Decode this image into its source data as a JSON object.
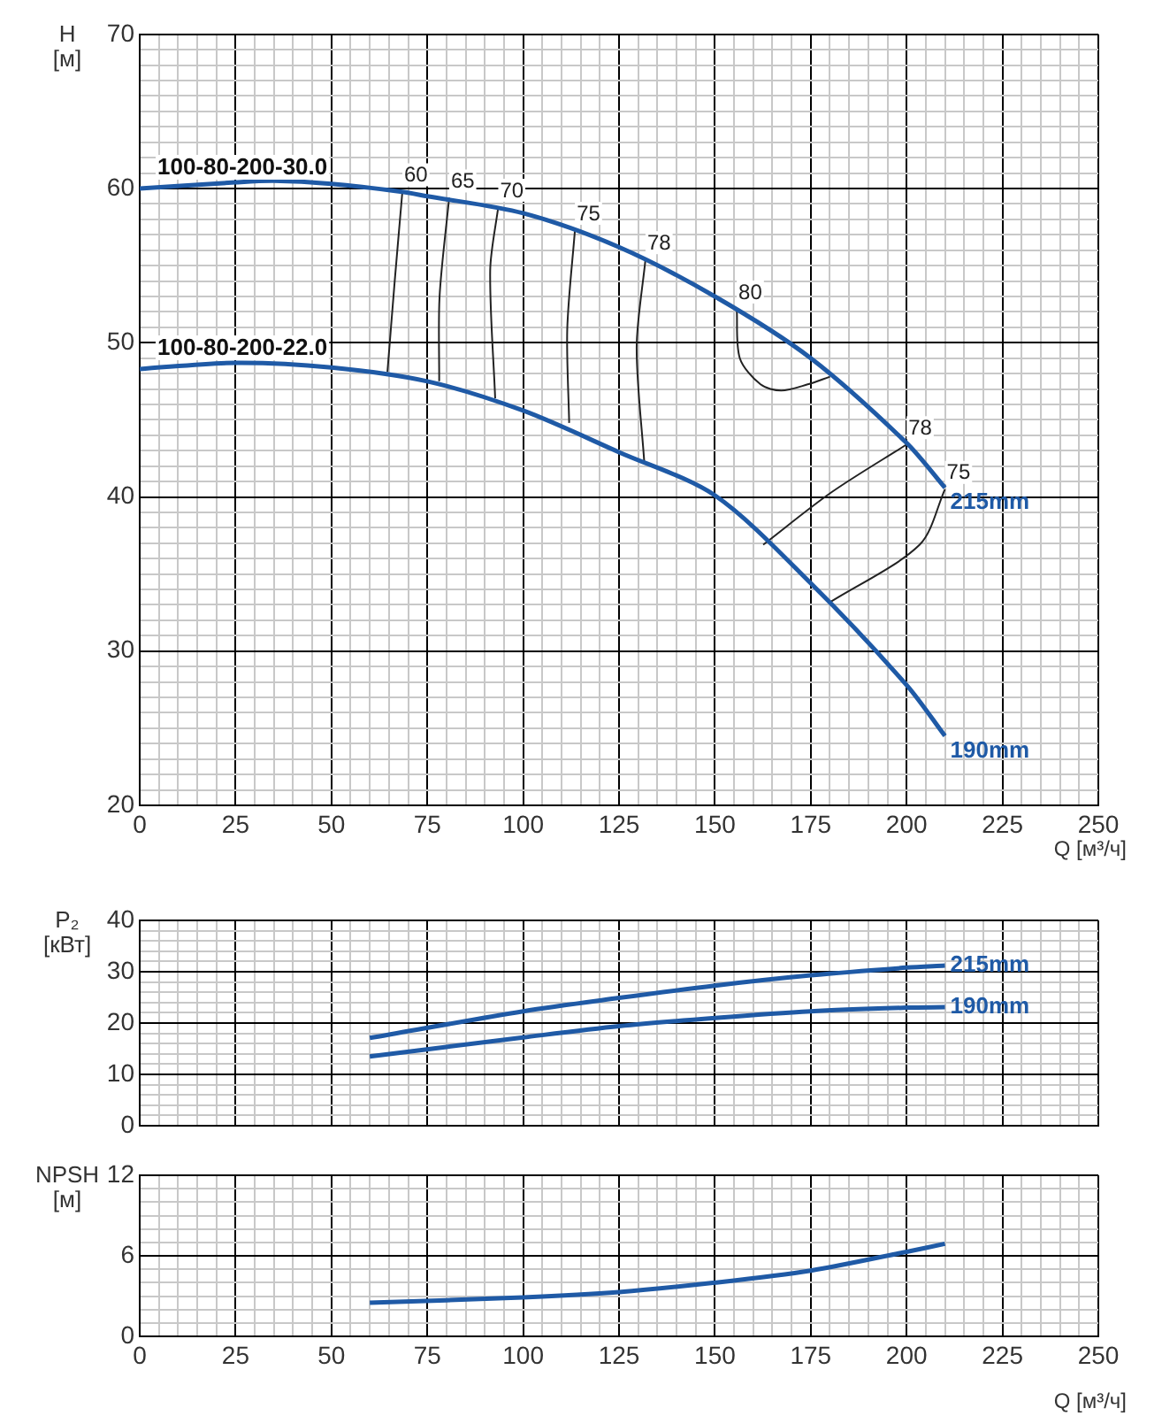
{
  "chart_data": [
    {
      "type": "line",
      "xlabel": "Q [м³/ч]",
      "ylabel": "H [м]",
      "grid": true,
      "xlim": [
        0,
        250
      ],
      "ylim": [
        20,
        70
      ],
      "xticks": [
        0,
        {
          "value": 5,
          "label": null
        },
        {
          "value": 10,
          "label": null
        },
        {
          "value": 15,
          "label": null
        },
        {
          "value": 20,
          "label": null
        },
        25,
        {
          "value": 30,
          "label": null
        },
        {
          "value": 35,
          "label": null
        },
        {
          "value": 40,
          "label": null
        },
        {
          "value": 45,
          "label": null
        },
        50,
        {
          "value": 55,
          "label": null
        },
        {
          "value": 60,
          "label": null
        },
        {
          "value": 65,
          "label": null
        },
        {
          "value": 70,
          "label": null
        },
        75,
        {
          "value": 80,
          "label": null
        },
        {
          "value": 85,
          "label": null
        },
        {
          "value": 90,
          "label": null
        },
        {
          "value": 95,
          "label": null
        },
        100,
        {
          "value": 105,
          "label": null
        },
        {
          "value": 110,
          "label": null
        },
        {
          "value": 115,
          "label": null
        },
        {
          "value": 120,
          "label": null
        },
        125,
        {
          "value": 130,
          "label": null
        },
        {
          "value": 135,
          "label": null
        },
        {
          "value": 140,
          "label": null
        },
        {
          "value": 145,
          "label": null
        },
        150,
        {
          "value": 155,
          "label": null
        },
        {
          "value": 160,
          "label": null
        },
        {
          "value": 165,
          "label": null
        },
        {
          "value": 170,
          "label": null
        },
        175,
        {
          "value": 180,
          "label": null
        },
        {
          "value": 185,
          "label": null
        },
        {
          "value": 190,
          "label": null
        },
        {
          "value": 195,
          "label": null
        },
        200,
        {
          "value": 205,
          "label": null
        },
        {
          "value": 210,
          "label": null
        },
        {
          "value": 215,
          "label": null
        },
        {
          "value": 220,
          "label": null
        },
        225,
        {
          "value": 230,
          "label": null
        },
        {
          "value": 235,
          "label": null
        },
        {
          "value": 240,
          "label": null
        },
        {
          "value": 245,
          "label": null
        },
        250
      ],
      "yticks": [
        20,
        {
          "value": 21,
          "label": null
        },
        {
          "value": 22,
          "label": null
        },
        {
          "value": 23,
          "label": null
        },
        {
          "value": 24,
          "label": null
        },
        {
          "value": 25,
          "label": null
        },
        {
          "value": 26,
          "label": null
        },
        {
          "value": 27,
          "label": null
        },
        {
          "value": 28,
          "label": null
        },
        {
          "value": 29,
          "label": null
        },
        30,
        {
          "value": 31,
          "label": null
        },
        {
          "value": 32,
          "label": null
        },
        {
          "value": 33,
          "label": null
        },
        {
          "value": 34,
          "label": null
        },
        {
          "value": 35,
          "label": null
        },
        {
          "value": 36,
          "label": null
        },
        {
          "value": 37,
          "label": null
        },
        {
          "value": 38,
          "label": null
        },
        {
          "value": 39,
          "label": null
        },
        40,
        {
          "value": 41,
          "label": null
        },
        {
          "value": 42,
          "label": null
        },
        {
          "value": 43,
          "label": null
        },
        {
          "value": 44,
          "label": null
        },
        {
          "value": 45,
          "label": null
        },
        {
          "value": 46,
          "label": null
        },
        {
          "value": 47,
          "label": null
        },
        {
          "value": 48,
          "label": null
        },
        {
          "value": 49,
          "label": null
        },
        50,
        {
          "value": 51,
          "label": null
        },
        {
          "value": 52,
          "label": null
        },
        {
          "value": 53,
          "label": null
        },
        {
          "value": 54,
          "label": null
        },
        {
          "value": 55,
          "label": null
        },
        {
          "value": 56,
          "label": null
        },
        {
          "value": 57,
          "label": null
        },
        {
          "value": 58,
          "label": null
        },
        {
          "value": 59,
          "label": null
        },
        60,
        {
          "value": 61,
          "label": null
        },
        {
          "value": 62,
          "label": null
        },
        {
          "value": 63,
          "label": null
        },
        {
          "value": 64,
          "label": null
        },
        {
          "value": 65,
          "label": null
        },
        {
          "value": 66,
          "label": null
        },
        {
          "value": 67,
          "label": null
        },
        {
          "value": 68,
          "label": null
        },
        {
          "value": 69,
          "label": null
        },
        70
      ],
      "annotations": [
        "100-80-200-30.0",
        "100-80-200-22.0"
      ],
      "series": [
        {
          "type": "line",
          "name": "215mm",
          "color": "#1f5aa6",
          "x": [
            0,
            25,
            35,
            50,
            68,
            75,
            100,
            125,
            150,
            175,
            200,
            210
          ],
          "values": [
            60,
            60.4,
            60.5,
            60.3,
            59.8,
            59.5,
            58.4,
            56.2,
            53,
            49,
            43.5,
            40.6
          ]
        },
        {
          "type": "line",
          "name": "190mm",
          "color": "#1f5aa6",
          "x": [
            0,
            25,
            50,
            75,
            100,
            125,
            150,
            175,
            200,
            210
          ],
          "values": [
            48.3,
            48.7,
            48.4,
            47.5,
            45.6,
            42.9,
            40.1,
            34.4,
            27.8,
            24.5
          ]
        },
        {
          "type": "line",
          "name": "60",
          "color": "#222222",
          "x": [
            68.5,
            66.5,
            64.6
          ],
          "values": [
            59.8,
            54,
            48.1
          ]
        },
        {
          "type": "line",
          "name": "65",
          "color": "#222222",
          "x": [
            80.7,
            78.2,
            78.1
          ],
          "values": [
            59.4,
            53,
            47.5
          ]
        },
        {
          "type": "line",
          "name": "70",
          "color": "#222222",
          "x": [
            93.5,
            91.4,
            92.7
          ],
          "values": [
            58.8,
            54.7,
            46.4
          ]
        },
        {
          "type": "line",
          "name": "75",
          "color": "#222222",
          "x": [
            113.5,
            111.5,
            112
          ],
          "values": [
            57.3,
            50.9,
            44.8
          ]
        },
        {
          "type": "line",
          "name": "78",
          "color": "#222222",
          "x": [
            131.9,
            129.6,
            131.6
          ],
          "values": [
            55.4,
            49.7,
            42.2
          ]
        },
        {
          "type": "line",
          "name": "80",
          "color": "#222222",
          "x": [
            155.7,
            156.5,
            161.9,
            167.3,
            174.2,
            180
          ],
          "values": [
            52.2,
            49,
            47.3,
            46.9,
            47.3,
            47.8
          ]
        },
        {
          "type": "line",
          "name": "78",
          "color": "#222222",
          "x": [
            200,
            180.4,
            162.6
          ],
          "values": [
            43.4,
            40.3,
            36.9
          ]
        },
        {
          "type": "line",
          "name": "75",
          "color": "#222222",
          "x": [
            210,
            203.4,
            179.6
          ],
          "values": [
            40.5,
            36.9,
            33.1
          ]
        }
      ]
    },
    {
      "type": "line",
      "ylabel": "P₂ [кВт]",
      "grid": true,
      "tick_labels": "y",
      "xlim": [
        0,
        250
      ],
      "ylim": [
        0,
        40
      ],
      "xticks": [
        0,
        {
          "value": 5,
          "label": null
        },
        {
          "value": 10,
          "label": null
        },
        {
          "value": 15,
          "label": null
        },
        {
          "value": 20,
          "label": null
        },
        25,
        {
          "value": 30,
          "label": null
        },
        {
          "value": 35,
          "label": null
        },
        {
          "value": 40,
          "label": null
        },
        {
          "value": 45,
          "label": null
        },
        50,
        {
          "value": 55,
          "label": null
        },
        {
          "value": 60,
          "label": null
        },
        {
          "value": 65,
          "label": null
        },
        {
          "value": 70,
          "label": null
        },
        75,
        {
          "value": 80,
          "label": null
        },
        {
          "value": 85,
          "label": null
        },
        {
          "value": 90,
          "label": null
        },
        {
          "value": 95,
          "label": null
        },
        100,
        {
          "value": 105,
          "label": null
        },
        {
          "value": 110,
          "label": null
        },
        {
          "value": 115,
          "label": null
        },
        {
          "value": 120,
          "label": null
        },
        125,
        {
          "value": 130,
          "label": null
        },
        {
          "value": 135,
          "label": null
        },
        {
          "value": 140,
          "label": null
        },
        {
          "value": 145,
          "label": null
        },
        150,
        {
          "value": 155,
          "label": null
        },
        {
          "value": 160,
          "label": null
        },
        {
          "value": 165,
          "label": null
        },
        {
          "value": 170,
          "label": null
        },
        175,
        {
          "value": 180,
          "label": null
        },
        {
          "value": 185,
          "label": null
        },
        {
          "value": 190,
          "label": null
        },
        {
          "value": 195,
          "label": null
        },
        200,
        {
          "value": 205,
          "label": null
        },
        {
          "value": 210,
          "label": null
        },
        {
          "value": 215,
          "label": null
        },
        {
          "value": 220,
          "label": null
        },
        225,
        {
          "value": 230,
          "label": null
        },
        {
          "value": 235,
          "label": null
        },
        {
          "value": 240,
          "label": null
        },
        {
          "value": 245,
          "label": null
        },
        250
      ],
      "yticks": [
        0,
        {
          "value": 2,
          "label": null
        },
        {
          "value": 4,
          "label": null
        },
        {
          "value": 6,
          "label": null
        },
        {
          "value": 8,
          "label": null
        },
        10,
        {
          "value": 12,
          "label": null
        },
        {
          "value": 14,
          "label": null
        },
        {
          "value": 16,
          "label": null
        },
        {
          "value": 18,
          "label": null
        },
        20,
        {
          "value": 22,
          "label": null
        },
        {
          "value": 24,
          "label": null
        },
        {
          "value": 26,
          "label": null
        },
        {
          "value": 28,
          "label": null
        },
        30,
        {
          "value": 32,
          "label": null
        },
        {
          "value": 34,
          "label": null
        },
        {
          "value": 36,
          "label": null
        },
        {
          "value": 38,
          "label": null
        },
        40
      ],
      "series": [
        {
          "type": "line",
          "name": "215mm",
          "color": "#1f5aa6",
          "x": [
            60,
            100,
            125,
            150,
            175,
            200,
            210
          ],
          "values": [
            17.1,
            22.3,
            24.9,
            27.3,
            29.3,
            30.8,
            31.2
          ]
        },
        {
          "type": "line",
          "name": "190mm",
          "color": "#1f5aa6",
          "x": [
            60,
            100,
            125,
            150,
            175,
            200,
            210
          ],
          "values": [
            13.5,
            17.2,
            19.4,
            21,
            22.3,
            23,
            23.1
          ]
        }
      ]
    },
    {
      "type": "line",
      "xlabel": "Q [м³/ч]",
      "ylabel": "NPSH [м]",
      "grid": true,
      "xlim": [
        0,
        250
      ],
      "ylim": [
        0,
        12
      ],
      "xticks": [
        0,
        {
          "value": 5,
          "label": null
        },
        {
          "value": 10,
          "label": null
        },
        {
          "value": 15,
          "label": null
        },
        {
          "value": 20,
          "label": null
        },
        25,
        {
          "value": 30,
          "label": null
        },
        {
          "value": 35,
          "label": null
        },
        {
          "value": 40,
          "label": null
        },
        {
          "value": 45,
          "label": null
        },
        50,
        {
          "value": 55,
          "label": null
        },
        {
          "value": 60,
          "label": null
        },
        {
          "value": 65,
          "label": null
        },
        {
          "value": 70,
          "label": null
        },
        75,
        {
          "value": 80,
          "label": null
        },
        {
          "value": 85,
          "label": null
        },
        {
          "value": 90,
          "label": null
        },
        {
          "value": 95,
          "label": null
        },
        100,
        {
          "value": 105,
          "label": null
        },
        {
          "value": 110,
          "label": null
        },
        {
          "value": 115,
          "label": null
        },
        {
          "value": 120,
          "label": null
        },
        125,
        {
          "value": 130,
          "label": null
        },
        {
          "value": 135,
          "label": null
        },
        {
          "value": 140,
          "label": null
        },
        {
          "value": 145,
          "label": null
        },
        150,
        {
          "value": 155,
          "label": null
        },
        {
          "value": 160,
          "label": null
        },
        {
          "value": 165,
          "label": null
        },
        {
          "value": 170,
          "label": null
        },
        175,
        {
          "value": 180,
          "label": null
        },
        {
          "value": 185,
          "label": null
        },
        {
          "value": 190,
          "label": null
        },
        {
          "value": 195,
          "label": null
        },
        200,
        {
          "value": 205,
          "label": null
        },
        {
          "value": 210,
          "label": null
        },
        {
          "value": 215,
          "label": null
        },
        {
          "value": 220,
          "label": null
        },
        225,
        {
          "value": 230,
          "label": null
        },
        {
          "value": 235,
          "label": null
        },
        {
          "value": 240,
          "label": null
        },
        {
          "value": 245,
          "label": null
        },
        250
      ],
      "yticks": [
        0,
        {
          "value": 1,
          "label": null
        },
        {
          "value": 2,
          "label": null
        },
        {
          "value": 3,
          "label": null
        },
        {
          "value": 4,
          "label": null
        },
        {
          "value": 5,
          "label": null
        },
        6,
        {
          "value": 7,
          "label": null
        },
        {
          "value": 8,
          "label": null
        },
        {
          "value": 9,
          "label": null
        },
        {
          "value": 10,
          "label": null
        },
        {
          "value": 11,
          "label": null
        },
        12
      ],
      "series": [
        {
          "type": "line",
          "color": "#1f5aa6",
          "x": [
            60,
            100,
            125,
            150,
            175,
            200,
            210
          ],
          "values": [
            2.5,
            2.9,
            3.3,
            4,
            4.9,
            6.3,
            6.9
          ]
        }
      ]
    }
  ]
}
